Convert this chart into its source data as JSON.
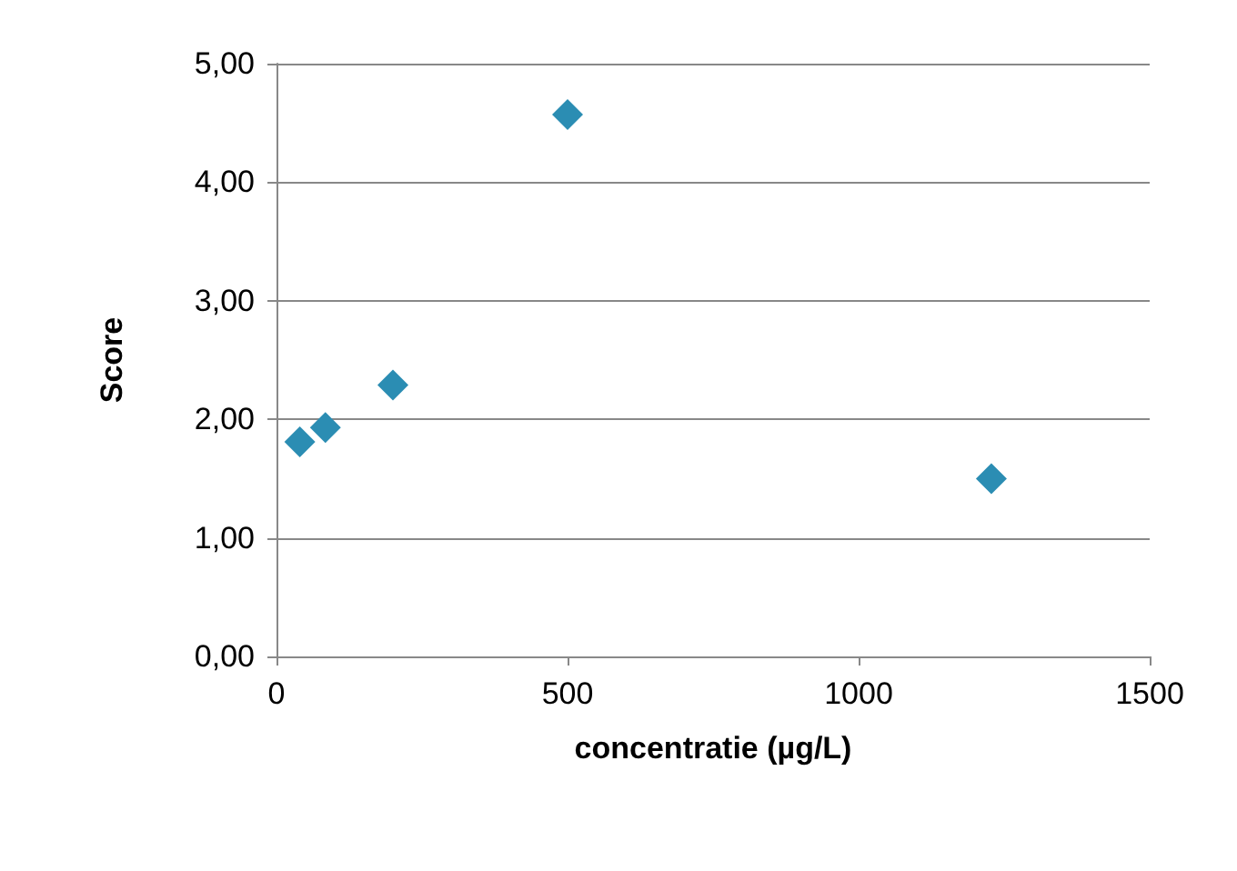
{
  "chart_data": {
    "type": "scatter",
    "xlabel": "concentratie (µg/L)",
    "ylabel": "Score",
    "x": [
      40,
      84,
      200,
      500,
      1228
    ],
    "series": [
      {
        "color": "#2b8db3",
        "values": [
          1.81,
          1.93,
          2.29,
          4.57,
          1.5
        ]
      }
    ],
    "xlim": [
      0,
      1500
    ],
    "xticks": [
      0,
      500,
      1000,
      1500
    ],
    "ylim": [
      0,
      5
    ],
    "yticks": [
      {
        "value": 0,
        "label": "0,00"
      },
      {
        "value": 1,
        "label": "1,00"
      },
      {
        "value": 2,
        "label": "2,00"
      },
      {
        "value": 3,
        "label": "3,00"
      },
      {
        "value": 4,
        "label": "4,00"
      },
      {
        "value": 5,
        "label": "5,00"
      }
    ],
    "grid": "y",
    "marker": "diamond"
  }
}
